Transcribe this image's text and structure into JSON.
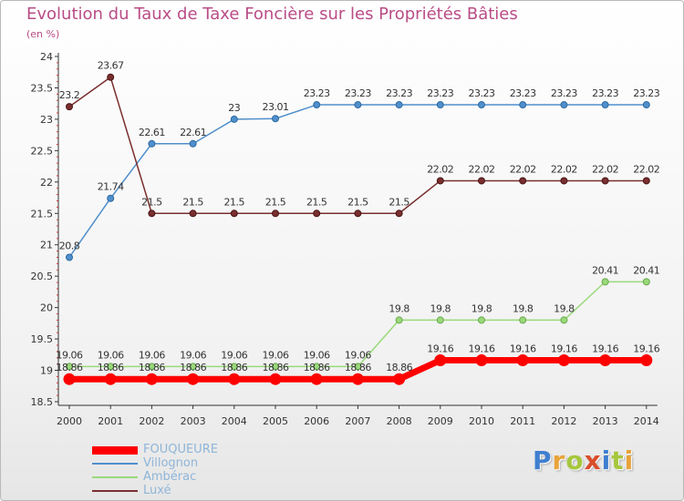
{
  "header": {
    "title": "Evolution du Taux de Taxe Foncière sur les Propriétés Bâties",
    "subtitle": "(en %)"
  },
  "logo": {
    "text": "Proxiti",
    "letter_colors": [
      "#3f7fd0",
      "#e8a33a",
      "#a6c73d",
      "#d94d2a",
      "#3f7fd0",
      "#a6c73d",
      "#e8a33a"
    ]
  },
  "chart_data": {
    "type": "line",
    "title": "Evolution du Taux de Taxe Foncière sur les Propriétés Bâties",
    "ylabel": "(en %)",
    "xlabel": "",
    "grid": false,
    "ylim": [
      18.5,
      24
    ],
    "yticks": [
      "18.5",
      "19",
      "19.5",
      "20",
      "20.5",
      "21",
      "21.5",
      "22",
      "22.5",
      "23",
      "23.5",
      "24"
    ],
    "categories": [
      "2000",
      "2001",
      "2002",
      "2003",
      "2004",
      "2005",
      "2006",
      "2007",
      "2008",
      "2009",
      "2010",
      "2011",
      "2012",
      "2013",
      "2014"
    ],
    "series": [
      {
        "name": "FOUQUEURE",
        "color": "#ff0000",
        "values": [
          18.86,
          18.86,
          18.86,
          18.86,
          18.86,
          18.86,
          18.86,
          18.86,
          18.86,
          19.16,
          19.16,
          19.16,
          19.16,
          19.16,
          19.16
        ],
        "labels": [
          "18.86",
          "18.86",
          "18.86",
          "18.86",
          "18.86",
          "18.86",
          "18.86",
          "18.86",
          "18.86",
          "19.16",
          "19.16",
          "19.16",
          "19.16",
          "19.16",
          "19.16"
        ]
      },
      {
        "name": "Villognon",
        "color": "#4f8fcc",
        "values": [
          20.8,
          21.74,
          22.61,
          22.61,
          23,
          23.01,
          23.23,
          23.23,
          23.23,
          23.23,
          23.23,
          23.23,
          23.23,
          23.23,
          23.23
        ],
        "labels": [
          "20.8",
          "21.74",
          "22.61",
          "22.61",
          "23",
          "23.01",
          "23.23",
          "23.23",
          "23.23",
          "23.23",
          "23.23",
          "23.23",
          "23.23",
          "23.23",
          "23.23"
        ]
      },
      {
        "name": "Ambérac",
        "color": "#99d97a",
        "values": [
          19.06,
          19.06,
          19.06,
          19.06,
          19.06,
          19.06,
          19.06,
          19.06,
          19.8,
          19.8,
          19.8,
          19.8,
          19.8,
          20.41,
          20.41
        ],
        "labels": [
          "19.06",
          "19.06",
          "19.06",
          "19.06",
          "19.06",
          "19.06",
          "19.06",
          "19.06",
          "19.8",
          "19.8",
          "19.8",
          "19.8",
          "19.8",
          "20.41",
          "20.41"
        ]
      },
      {
        "name": "Luxé",
        "color": "#7a2f2f",
        "values": [
          23.2,
          23.67,
          21.5,
          21.5,
          21.5,
          21.5,
          21.5,
          21.5,
          21.5,
          22.02,
          22.02,
          22.02,
          22.02,
          22.02,
          22.02
        ],
        "labels": [
          "23.2",
          "23.67",
          "21.5",
          "21.5",
          "21.5",
          "21.5",
          "21.5",
          "21.5",
          "21.5",
          "22.02",
          "22.02",
          "22.02",
          "22.02",
          "22.02",
          "22.02"
        ]
      }
    ]
  }
}
